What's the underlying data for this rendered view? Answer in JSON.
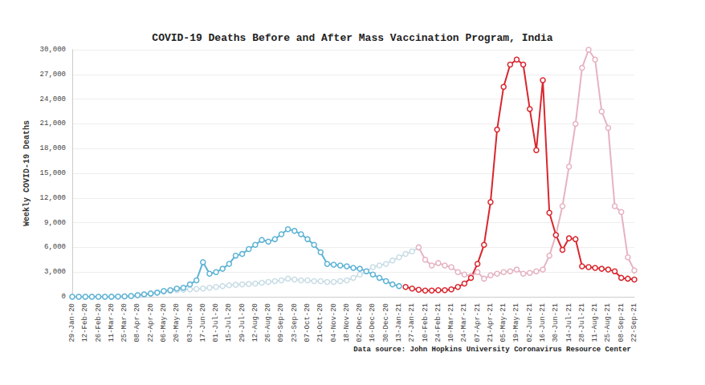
{
  "chart_data": {
    "type": "line",
    "title": "COVID-19 Deaths Before and After Mass Vaccination Program, India",
    "y_label": "Weekly COVID-19 Deaths",
    "annotation": "Data source: John Hopkins University Coronavirus Resource Center",
    "categories": [
      "29-Jan-20",
      null,
      "12-Feb-20",
      null,
      "26-Feb-20",
      null,
      "11-Mar-20",
      null,
      "25-Mar-20",
      null,
      "08-Apr-20",
      null,
      "22-Apr-20",
      null,
      "06-May-20",
      null,
      "20-May-20",
      null,
      "03-Jun-20",
      null,
      "17-Jun-20",
      null,
      "01-Jul-20",
      null,
      "15-Jul-20",
      null,
      "29-Jul-20",
      null,
      "12-Aug-20",
      null,
      "26-Aug-20",
      null,
      "09-Sep-20",
      null,
      "23-Sep-20",
      null,
      "07-Oct-20",
      null,
      "21-Oct-20",
      null,
      "04-Nov-20",
      null,
      "18-Nov-20",
      null,
      "02-Dec-20",
      null,
      "16-Dec-20",
      null,
      "30-Dec-20",
      null,
      "13-Jan-21",
      null,
      "27-Jan-21",
      null,
      "10-Feb-21",
      null,
      "24-Feb-21",
      null,
      "10-Mar-21",
      null,
      "24-Mar-21",
      null,
      "07-Apr-21",
      null,
      "21-Apr-21",
      null,
      "05-May-21",
      null,
      "19-May-21",
      null,
      "02-Jun-21",
      null,
      "16-Jun-21",
      null,
      "30-Jun-21",
      null,
      "14-Jul-21",
      null,
      "28-Jul-21",
      null,
      "11-Aug-21",
      null,
      "25-Aug-21",
      null,
      "08-Sep-21",
      null,
      "22-Sep-21"
    ],
    "series": [
      {
        "color": "#c9dde6",
        "marker": "circle",
        "values": [
          0,
          0,
          0,
          0,
          0,
          0,
          0,
          20,
          40,
          80,
          200,
          300,
          400,
          500,
          600,
          700,
          800,
          850,
          900,
          950,
          1000,
          1100,
          1200,
          1300,
          1400,
          1450,
          1500,
          1550,
          1600,
          1700,
          1800,
          1900,
          2000,
          2200,
          2100,
          2000,
          2000,
          1900,
          1900,
          1800,
          1800,
          1900,
          2000,
          2300,
          2700,
          3100,
          3600,
          3800,
          4000,
          4400,
          4800,
          5200,
          5500,
          6000,
          null,
          null,
          null,
          null,
          null,
          null,
          null,
          null,
          null,
          null,
          null,
          null,
          null,
          null,
          null,
          null,
          null,
          null,
          null,
          null,
          null,
          null,
          null,
          null,
          null,
          null,
          null,
          null,
          null,
          null,
          null,
          null,
          null
        ]
      },
      {
        "color": "#e6b3c1",
        "marker": "circle",
        "values": [
          null,
          null,
          null,
          null,
          null,
          null,
          null,
          null,
          null,
          null,
          null,
          null,
          null,
          null,
          null,
          null,
          null,
          null,
          null,
          null,
          null,
          null,
          null,
          null,
          null,
          null,
          null,
          null,
          null,
          null,
          null,
          null,
          null,
          null,
          null,
          null,
          null,
          null,
          null,
          null,
          null,
          null,
          null,
          null,
          null,
          null,
          null,
          null,
          null,
          null,
          null,
          null,
          null,
          6000,
          4500,
          3800,
          4100,
          3800,
          3600,
          3000,
          2700,
          2500,
          3000,
          2200,
          2600,
          2800,
          3000,
          3100,
          3300,
          2800,
          2900,
          3100,
          3300,
          5000,
          7500,
          11000,
          15800,
          21000,
          27800,
          30000,
          28800,
          22500,
          20500,
          11000,
          10300,
          4800,
          3200
        ]
      },
      {
        "color": "#5db3d5",
        "marker": "circle",
        "values": [
          0,
          0,
          0,
          0,
          0,
          0,
          10,
          30,
          50,
          100,
          200,
          300,
          400,
          500,
          700,
          800,
          1000,
          1100,
          1500,
          2000,
          4200,
          2800,
          3000,
          3400,
          4000,
          5000,
          5200,
          5800,
          6300,
          6900,
          6700,
          7000,
          7600,
          8200,
          8000,
          7600,
          7000,
          6300,
          5400,
          4000,
          3900,
          3800,
          3700,
          3500,
          3400,
          3100,
          2700,
          2300,
          1900,
          1500,
          1300,
          null,
          null,
          null,
          null,
          null,
          null,
          null,
          null,
          null,
          null,
          null,
          null,
          null,
          null,
          null,
          null,
          null,
          null,
          null,
          null,
          null,
          null,
          null,
          null,
          null,
          null,
          null,
          null,
          null,
          null,
          null,
          null,
          null,
          null,
          null,
          null
        ]
      },
      {
        "color": "#d9262e",
        "marker": "circle",
        "values": [
          null,
          null,
          null,
          null,
          null,
          null,
          null,
          null,
          null,
          null,
          null,
          null,
          null,
          null,
          null,
          null,
          null,
          null,
          null,
          null,
          null,
          null,
          null,
          null,
          null,
          null,
          null,
          null,
          null,
          null,
          null,
          null,
          null,
          null,
          null,
          null,
          null,
          null,
          null,
          null,
          null,
          null,
          null,
          null,
          null,
          null,
          null,
          null,
          null,
          null,
          null,
          1200,
          1000,
          850,
          750,
          750,
          800,
          800,
          900,
          1200,
          1600,
          2300,
          4000,
          6300,
          11500,
          20300,
          25500,
          28200,
          28800,
          28200,
          22800,
          17800,
          26300,
          10200,
          7500,
          5700,
          7100,
          7000,
          3700,
          3600,
          3500,
          3400,
          3300,
          3100,
          2300,
          2200,
          2100
        ]
      }
    ],
    "ylim": [
      0,
      30000
    ],
    "yticks": [
      0,
      {
        "value": 3000,
        "label": "3,000"
      },
      {
        "value": 6000,
        "label": "6,000"
      },
      {
        "value": 9000,
        "label": "9,000"
      },
      {
        "value": 12000,
        "label": "12,000"
      },
      {
        "value": 15000,
        "label": "15,000"
      },
      {
        "value": 18000,
        "label": "18,000"
      },
      {
        "value": 21000,
        "label": "21,000"
      },
      {
        "value": 24000,
        "label": "24,000"
      },
      {
        "value": 27000,
        "label": "27,000"
      },
      {
        "value": 30000,
        "label": "30,000"
      }
    ],
    "grid": true
  }
}
